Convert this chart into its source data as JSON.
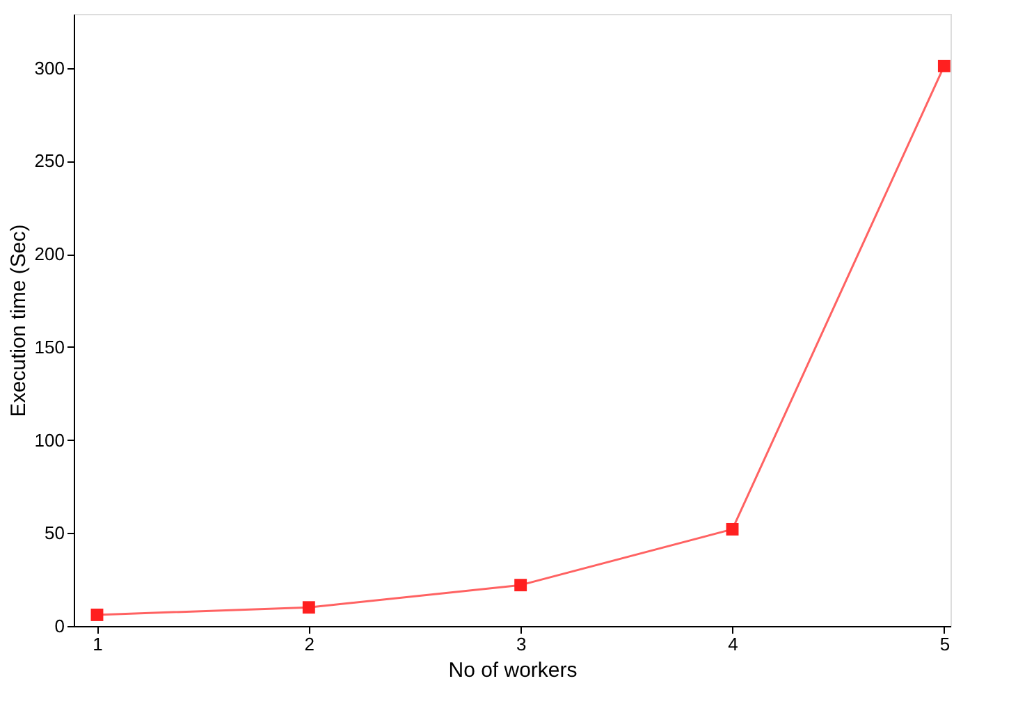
{
  "chart_data": {
    "type": "line",
    "xlabel": "No of workers",
    "ylabel": "Execution time (Sec)",
    "x": [
      1,
      2,
      3,
      4,
      5
    ],
    "series": [
      {
        "color": "#ff2020",
        "values": [
          6,
          10,
          22,
          52,
          301
        ]
      }
    ],
    "xlim": [
      0.89,
      5.03
    ],
    "xticks": [
      1,
      2,
      3,
      4,
      5
    ],
    "ylim": [
      0,
      329
    ],
    "yticks": [
      0,
      50,
      100,
      150,
      200,
      250,
      300
    ],
    "grid": false,
    "marker": "square",
    "line_style": "solid"
  }
}
